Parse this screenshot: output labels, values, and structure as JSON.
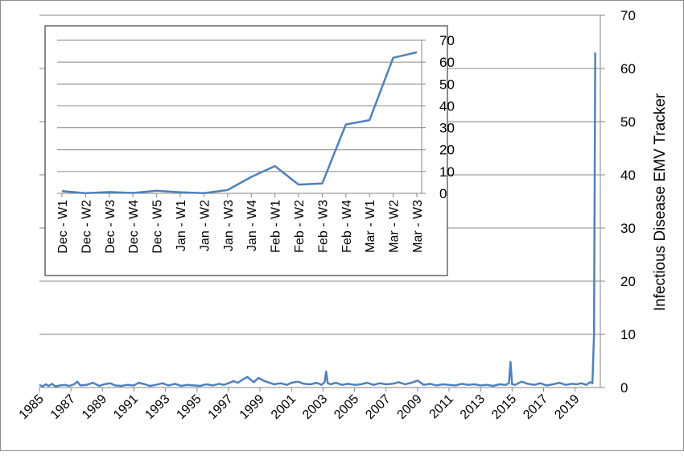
{
  "chart_data": [
    {
      "type": "line",
      "title": "",
      "ylabel": "Infectious Disease EMV Tracker",
      "xlabel": "",
      "x_tick_labels": [
        "1985",
        "1987",
        "1989",
        "1991",
        "1993",
        "1995",
        "1997",
        "1999",
        "2001",
        "2003",
        "2005",
        "2007",
        "2009",
        "2011",
        "2013",
        "2015",
        "2017",
        "2019"
      ],
      "x_range": [
        1985,
        2020.6
      ],
      "y_ticks": [
        0,
        10,
        20,
        30,
        40,
        50,
        60,
        70
      ],
      "ylim": [
        0,
        70
      ],
      "y_axis_side": "right",
      "grid": "horizontal",
      "color": "#4f81bd",
      "series": [
        {
          "x": [
            1985.0,
            1985.2,
            1985.4,
            1985.6,
            1985.8,
            1986.0,
            1986.3,
            1986.6,
            1986.9,
            1987.2,
            1987.4,
            1987.6,
            1988.0,
            1988.4,
            1988.8,
            1989.1,
            1989.5,
            1989.8,
            1990.2,
            1990.6,
            1991.0,
            1991.3,
            1991.7,
            1992.0,
            1992.4,
            1992.8,
            1993.2,
            1993.6,
            1994.0,
            1994.4,
            1994.8,
            1995.2,
            1995.6,
            1996.0,
            1996.4,
            1996.7,
            1997.0,
            1997.3,
            1997.6,
            1997.9,
            1998.2,
            1998.6,
            1998.9,
            1999.3,
            1999.6,
            1999.9,
            2000.3,
            2000.7,
            2001.0,
            2001.4,
            2001.8,
            2002.2,
            2002.6,
            2002.9,
            2003.1,
            2003.2,
            2003.3,
            2003.5,
            2003.8,
            2004.2,
            2004.6,
            2005.0,
            2005.4,
            2005.8,
            2006.2,
            2006.6,
            2007.0,
            2007.4,
            2007.8,
            2008.2,
            2008.6,
            2009.0,
            2009.4,
            2009.8,
            2010.2,
            2010.6,
            2011.0,
            2011.4,
            2011.8,
            2012.2,
            2012.6,
            2013.0,
            2013.4,
            2013.8,
            2014.2,
            2014.6,
            2014.8,
            2014.9,
            2015.0,
            2015.2,
            2015.6,
            2016.0,
            2016.4,
            2016.8,
            2017.2,
            2017.6,
            2018.0,
            2018.4,
            2018.8,
            2019.1,
            2019.4,
            2019.7,
            2019.95,
            2020.1,
            2020.2,
            2020.28
          ],
          "y": [
            0.5,
            0.2,
            0.6,
            0.3,
            0.7,
            0.2,
            0.4,
            0.5,
            0.3,
            0.6,
            1.1,
            0.4,
            0.5,
            0.9,
            0.3,
            0.6,
            0.8,
            0.4,
            0.3,
            0.5,
            0.4,
            0.9,
            0.6,
            0.3,
            0.5,
            0.8,
            0.4,
            0.7,
            0.3,
            0.5,
            0.4,
            0.3,
            0.6,
            0.4,
            0.7,
            0.5,
            0.8,
            1.2,
            0.9,
            1.5,
            2.0,
            1.0,
            1.8,
            1.2,
            0.9,
            0.6,
            0.8,
            0.5,
            0.9,
            1.1,
            0.7,
            0.6,
            0.9,
            0.5,
            1.0,
            3.0,
            0.8,
            0.6,
            0.9,
            0.5,
            0.7,
            0.5,
            0.6,
            0.9,
            0.5,
            0.8,
            0.6,
            0.7,
            1.0,
            0.6,
            0.9,
            1.3,
            0.5,
            0.7,
            0.4,
            0.6,
            0.5,
            0.4,
            0.7,
            0.5,
            0.6,
            0.4,
            0.5,
            0.3,
            0.6,
            0.5,
            0.8,
            4.8,
            0.6,
            0.5,
            1.1,
            0.7,
            0.5,
            0.8,
            0.4,
            0.6,
            0.9,
            0.5,
            0.7,
            0.6,
            0.8,
            0.5,
            1.0,
            0.8,
            10.0,
            63.0
          ]
        }
      ]
    },
    {
      "type": "line",
      "title": "",
      "categories": [
        "Dec - W1",
        "Dec - W2",
        "Dec - W3",
        "Dec - W4",
        "Dec - W5",
        "Jan - W1",
        "Jan - W2",
        "Jan - W3",
        "Jan - W4",
        "Feb - W1",
        "Feb - W2",
        "Feb - W3",
        "Feb - W4",
        "Mar - W1",
        "Mar - W2",
        "Mar - W3"
      ],
      "y_ticks": [
        0,
        10,
        20,
        30,
        40,
        50,
        60,
        70
      ],
      "ylim": [
        0,
        70
      ],
      "y_axis_side": "right",
      "grid": "horizontal",
      "color": "#4f81bd",
      "series": [
        {
          "values": [
            1.0,
            0.1,
            0.6,
            0.2,
            1.2,
            0.5,
            0.1,
            1.5,
            7.5,
            12.5,
            4.0,
            4.5,
            31.5,
            33.5,
            62.0,
            64.5
          ]
        }
      ]
    }
  ]
}
